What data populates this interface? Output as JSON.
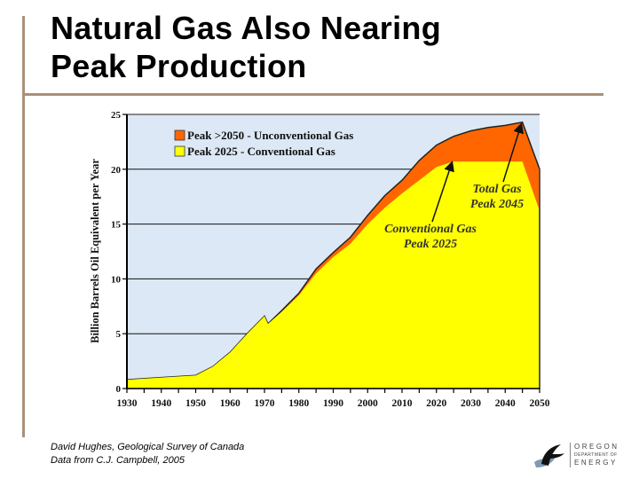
{
  "slide": {
    "title_line1": "Natural Gas Also Nearing",
    "title_line2": "Peak Production",
    "source_line1": "David Hughes, Geological Survey of Canada",
    "source_line2": "Data from C.J. Campbell, 2005",
    "logo": {
      "icon": "oregon-energy-logo-icon",
      "line1": "OREGON",
      "line2": "DEPARTMENT OF",
      "line3": "ENERGY"
    }
  },
  "colors": {
    "plot_background": "#dce8f5",
    "conventional": "#ffff00",
    "unconventional": "#ff6600",
    "rule": "#a89078"
  },
  "chart_data": {
    "type": "area",
    "title": "",
    "xlabel": "",
    "ylabel": "Billion Barrels Oil Equivalent per Year",
    "xlim": [
      1930,
      2050
    ],
    "ylim": [
      0,
      25
    ],
    "x_ticks": [
      "1930",
      "1940",
      "1950",
      "1960",
      "1970",
      "1980",
      "1990",
      "2000",
      "2010",
      "2020",
      "2030",
      "2040",
      "2050"
    ],
    "y_ticks": [
      "0",
      "5",
      "10",
      "15",
      "20",
      "25"
    ],
    "grid": "horizontal",
    "legend_position": "top-left inside",
    "legend": [
      {
        "label": "Peak >2050 - Unconventional Gas",
        "color": "#ff6600"
      },
      {
        "label": "Peak 2025 - Conventional Gas",
        "color": "#ffff00"
      }
    ],
    "x": [
      1930,
      1940,
      1950,
      1955,
      1960,
      1965,
      1970,
      1971,
      1975,
      1980,
      1985,
      1990,
      1995,
      2000,
      2005,
      2010,
      2015,
      2020,
      2025,
      2030,
      2035,
      2040,
      2045,
      2050
    ],
    "series": [
      {
        "name": "Peak 2025 - Conventional Gas",
        "stacking": "base",
        "values": [
          0.8,
          1.0,
          1.2,
          2.0,
          3.3,
          5.0,
          6.6,
          5.9,
          7.0,
          8.5,
          10.5,
          12.0,
          13.2,
          15.0,
          16.5,
          17.8,
          19.0,
          20.2,
          20.7,
          20.7,
          20.7,
          20.7,
          20.7,
          16.2
        ]
      },
      {
        "name": "Peak >2050 - Unconventional Gas",
        "stacking": "total",
        "values": [
          0.8,
          1.0,
          1.2,
          2.0,
          3.3,
          5.0,
          6.6,
          5.9,
          7.1,
          8.7,
          10.9,
          12.4,
          13.8,
          15.8,
          17.6,
          19.0,
          20.8,
          22.2,
          23.0,
          23.5,
          23.8,
          24.0,
          24.3,
          20.0
        ]
      }
    ],
    "annotations": [
      {
        "text_line1": "Total Gas",
        "text_line2": "Peak 2045",
        "points_to": [
          2045,
          24.3
        ]
      },
      {
        "text_line1": "Conventional Gas",
        "text_line2": "Peak 2025",
        "points_to": [
          2025,
          20.7
        ]
      }
    ]
  }
}
